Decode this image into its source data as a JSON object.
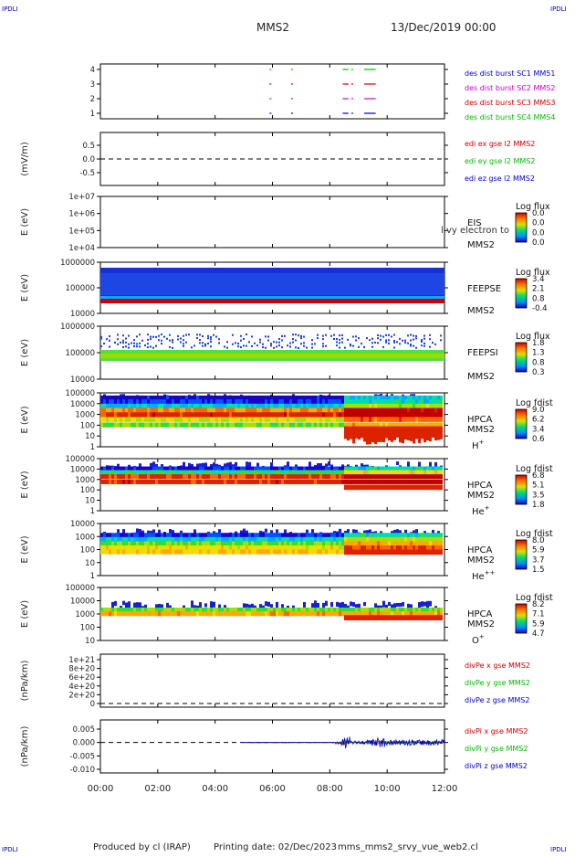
{
  "corners": {
    "tl": "IPDLI",
    "tr": "IPDLI",
    "bl": "IPDLI",
    "br": "IPDLI"
  },
  "header": {
    "spacecraft": "MMS2",
    "date": "13/Dec/2019 00:00"
  },
  "footer": {
    "produced": "Produced by cl (IRAP)",
    "printing": "Printing date: 02/Dec/2023",
    "script": "mms_mms2_srvy_vue_web2.cl"
  },
  "chart_data": {
    "type": "heatmap",
    "x_axis": {
      "range_hours": [
        0,
        12
      ],
      "ticks": [
        "00:00",
        "02:00",
        "04:00",
        "06:00",
        "08:00",
        "10:00",
        "12:00"
      ]
    },
    "panels": [
      {
        "id": "burst",
        "type": "line",
        "yticks": [
          "4",
          "3",
          "2",
          "1"
        ],
        "legend": [
          {
            "text": "des dist burst SC1 MM51",
            "color": "#0000cc"
          },
          {
            "text": "des dist burst SC2 MMS2",
            "color": "#cc00cc"
          },
          {
            "text": "des dist burst SC3 MMS3",
            "color": "#cc0000"
          },
          {
            "text": "des dist burst SC4 MMS4",
            "color": "#00bb00"
          }
        ],
        "burst_intervals_hours": [
          [
            5.9,
            5.95
          ],
          [
            6.65,
            6.7
          ],
          [
            8.45,
            8.65
          ],
          [
            8.75,
            8.8
          ],
          [
            9.2,
            9.6
          ]
        ]
      },
      {
        "id": "edi",
        "type": "line",
        "ylabel": "(mV/m)",
        "yticks": [
          "0.5",
          "0.0",
          "-0.5"
        ],
        "legend": [
          {
            "text": "edi ex gse l2 MMS2",
            "color": "#cc0000"
          },
          {
            "text": "edi ey gse l2 MMS2",
            "color": "#00bb00"
          },
          {
            "text": "edi ez gse l2 MMS2",
            "color": "#0000cc"
          }
        ]
      },
      {
        "id": "eis",
        "type": "heatmap",
        "ylabel": "E (eV)",
        "yticks": [
          "1e+07",
          "1e+06",
          "1e+05",
          "1e+04"
        ],
        "labels": [
          "EIS",
          "MMS2"
        ],
        "overlay": "l.vy electron to",
        "colorbar": {
          "title": "Log flux",
          "ticks": [
            "0.0",
            "0.0",
            "0.0",
            "0.0"
          ]
        }
      },
      {
        "id": "feepse",
        "type": "heatmap",
        "ylabel": "E (eV)",
        "yticks": [
          "1000000",
          "100000",
          "10000"
        ],
        "labels": [
          "FEEPSE",
          "MMS2"
        ],
        "colorbar": {
          "title": "Log flux",
          "ticks": [
            "3.4",
            "2.1",
            "0.8",
            "-0.4"
          ]
        }
      },
      {
        "id": "feepsi",
        "type": "heatmap",
        "ylabel": "E (eV)",
        "yticks": [
          "1000000",
          "100000",
          "10000"
        ],
        "labels": [
          "FEEPSI",
          "MMS2"
        ],
        "colorbar": {
          "title": "Log flux",
          "ticks": [
            "1.8",
            "1.3",
            "0.8",
            "0.3"
          ]
        }
      },
      {
        "id": "hpca_h",
        "type": "heatmap",
        "ylabel": "E (eV)",
        "yticks": [
          "100000",
          "10000",
          "1000",
          "100",
          "10",
          "1"
        ],
        "labels": [
          "HPCA",
          "MMS2"
        ],
        "species": "H",
        "species_sup": "+",
        "colorbar": {
          "title": "Log fdist",
          "ticks": [
            "9.0",
            "6.2",
            "3.4",
            "0.6"
          ]
        }
      },
      {
        "id": "hpca_he",
        "type": "heatmap",
        "ylabel": "E (eV)",
        "yticks": [
          "100000",
          "10000",
          "1000",
          "100",
          "10",
          "1"
        ],
        "labels": [
          "HPCA",
          "MMS2"
        ],
        "species": "He",
        "species_sup": "+",
        "colorbar": {
          "title": "Log fdist",
          "ticks": [
            "6.8",
            "5.1",
            "3.5",
            "1.8"
          ]
        }
      },
      {
        "id": "hpca_hepp",
        "type": "heatmap",
        "ylabel": "E (eV)",
        "yticks": [
          "10000",
          "1000",
          "100",
          "10",
          "1"
        ],
        "labels": [
          "HPCA",
          "MMS2"
        ],
        "species": "He",
        "species_sup": "++",
        "colorbar": {
          "title": "Log fdist",
          "ticks": [
            "8.0",
            "5.9",
            "3.7",
            "1.5"
          ]
        }
      },
      {
        "id": "hpca_o",
        "type": "heatmap",
        "ylabel": "E (eV)",
        "yticks": [
          "100000",
          "10000",
          "1000",
          "100",
          "10"
        ],
        "labels": [
          "HPCA",
          "MMS2"
        ],
        "species": "O",
        "species_sup": "+",
        "colorbar": {
          "title": "Log fdist",
          "ticks": [
            "8.2",
            "7.1",
            "5.9",
            "4.7"
          ]
        }
      },
      {
        "id": "divpe",
        "type": "line",
        "ylabel": "(nPa/km)",
        "yticks": [
          "1e+21",
          "8e+20",
          "6e+20",
          "4e+20",
          "2e+20",
          "0"
        ],
        "legend": [
          {
            "text": "divPe x gse MMS2",
            "color": "#cc0000"
          },
          {
            "text": "divPe y gse MMS2",
            "color": "#00bb00"
          },
          {
            "text": "divPe z gse MMS2",
            "color": "#0000cc"
          }
        ]
      },
      {
        "id": "divpi",
        "type": "line",
        "ylabel": "(nPa/km)",
        "yticks": [
          "0.005",
          "0.000",
          "-0.005",
          "-0.010"
        ],
        "legend": [
          {
            "text": "divPi x gse MMS2",
            "color": "#cc0000"
          },
          {
            "text": "divPi y gse MMS2",
            "color": "#00bb00"
          },
          {
            "text": "divPi z gse MMS2",
            "color": "#0000cc"
          }
        ]
      }
    ]
  }
}
